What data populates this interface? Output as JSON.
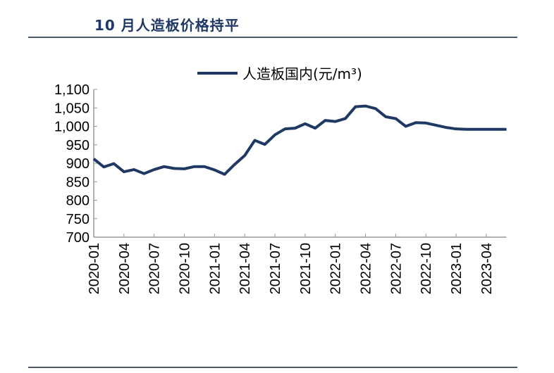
{
  "title": "10 月人造板价格持平",
  "chart_data": {
    "type": "line",
    "title": "",
    "xlabel": "",
    "ylabel": "",
    "ylim": [
      700,
      1100
    ],
    "yticks": [
      "700",
      "750",
      "800",
      "850",
      "900",
      "950",
      "1,000",
      "1,050",
      "1,100"
    ],
    "xticks": [
      "2020-01",
      "2020-04",
      "2020-07",
      "2020-10",
      "2021-01",
      "2021-04",
      "2021-07",
      "2021-10",
      "2022-01",
      "2022-04",
      "2022-07",
      "2022-10",
      "2023-01",
      "2023-04"
    ],
    "grid": false,
    "legend_position": "top",
    "x": [
      "2020-01",
      "2020-02",
      "2020-03",
      "2020-04",
      "2020-05",
      "2020-06",
      "2020-07",
      "2020-08",
      "2020-09",
      "2020-10",
      "2020-11",
      "2020-12",
      "2021-01",
      "2021-02",
      "2021-03",
      "2021-04",
      "2021-05",
      "2021-06",
      "2021-07",
      "2021-08",
      "2021-09",
      "2021-10",
      "2021-11",
      "2021-12",
      "2022-01",
      "2022-02",
      "2022-03",
      "2022-04",
      "2022-05",
      "2022-06",
      "2022-07",
      "2022-08",
      "2022-09",
      "2022-10",
      "2022-11",
      "2022-12",
      "2023-01",
      "2023-02",
      "2023-03",
      "2023-04",
      "2023-05",
      "2023-06"
    ],
    "series": [
      {
        "name": "人造板国内(元/m³)",
        "color": "#1f3864",
        "values": [
          912,
          890,
          899,
          877,
          883,
          872,
          883,
          891,
          886,
          885,
          891,
          891,
          882,
          870,
          897,
          921,
          962,
          951,
          977,
          993,
          995,
          1007,
          995,
          1016,
          1013,
          1021,
          1053,
          1055,
          1048,
          1026,
          1021,
          1000,
          1010,
          1009,
          1003,
          997,
          993,
          992,
          992,
          992,
          992,
          992
        ]
      }
    ]
  }
}
